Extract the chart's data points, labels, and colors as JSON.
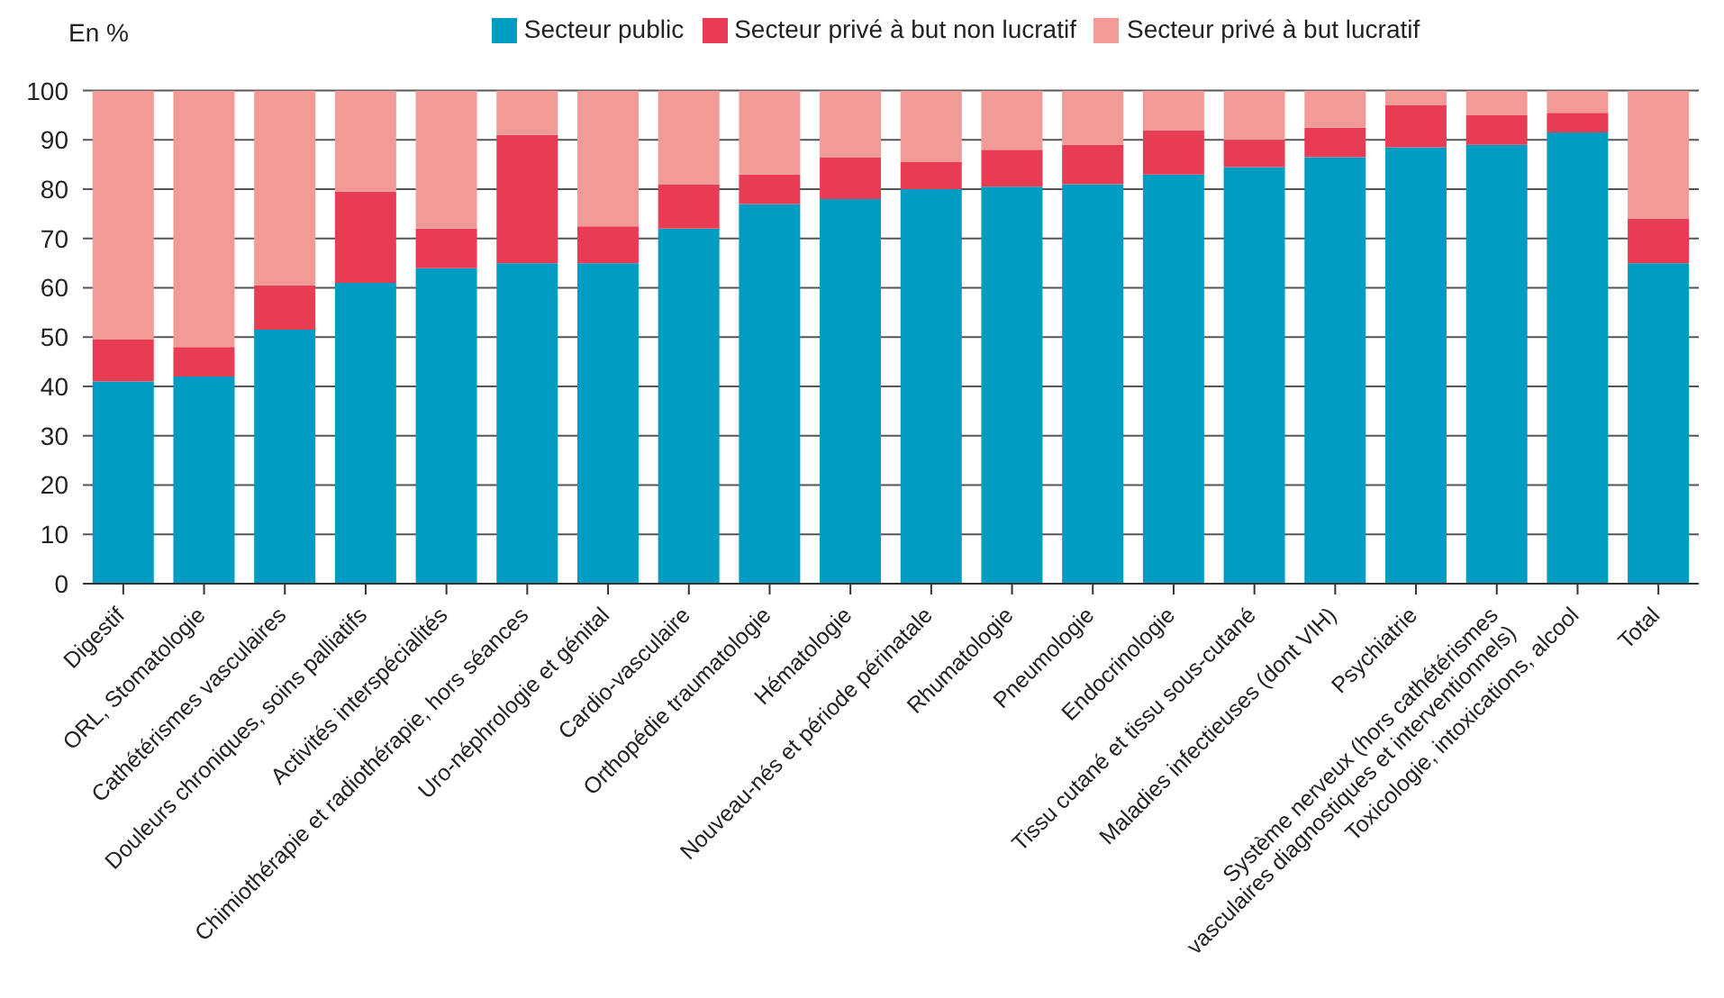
{
  "chart_data": {
    "type": "bar",
    "stacked": true,
    "ylabel": "En %",
    "categories": [
      "Digestif",
      "ORL, Stomatologie",
      "Cathétérismes vasculaires",
      "Douleurs chroniques, soins palliatifs",
      "Activités interspécialités",
      "Chimiothérapie et radiothérapie, hors séances",
      "Uro-néphrologie et génital",
      "Cardio-vasculaire",
      "Orthopédie traumatologie",
      "Hématologie",
      "Nouveau-nés et période périnatale",
      "Rhumatologie",
      "Pneumologie",
      "Endocrinologie",
      "Tissu cutané et tissu sous-cutané",
      "Maladies infectieuses (dont VIH)",
      "Psychiatrie",
      "Système nerveux (hors cathétérismes vasculaires diagnostiques et interventionnels)",
      "Toxicologie, intoxications, alcool",
      "Total"
    ],
    "series": [
      {
        "name": "Secteur public",
        "color": "#009cc2",
        "values": [
          41,
          42,
          51.5,
          61,
          64,
          65,
          65,
          72,
          77,
          78,
          80,
          80.5,
          81,
          83,
          84.5,
          86.5,
          88.5,
          89,
          91.5,
          65
        ]
      },
      {
        "name": "Secteur privé à but non lucratif",
        "color": "#e83c54",
        "values": [
          8.5,
          6,
          9,
          18.5,
          8,
          26,
          7.5,
          9,
          6,
          8.5,
          5.5,
          7.5,
          8,
          9,
          5.5,
          6,
          8.5,
          6,
          4,
          9
        ]
      },
      {
        "name": "Secteur privé à but lucratif",
        "color": "#f29b96",
        "values": [
          50.5,
          52,
          39.5,
          20.5,
          28,
          9,
          27.5,
          19,
          17,
          13.5,
          14.5,
          12,
          11,
          8,
          10,
          7.5,
          3,
          5,
          4.5,
          26
        ]
      }
    ],
    "ylim": [
      0,
      100
    ],
    "yticks": [
      0,
      10,
      20,
      30,
      40,
      50,
      60,
      70,
      80,
      90,
      100
    ],
    "grid": "y",
    "legend": "top"
  }
}
